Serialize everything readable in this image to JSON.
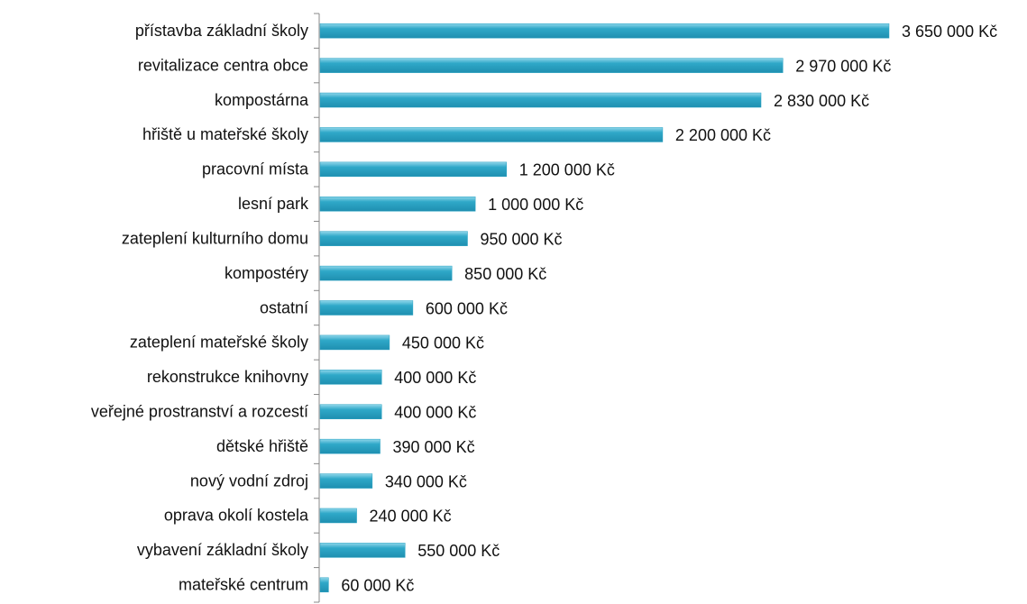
{
  "chart_data": {
    "type": "barh",
    "categories": [
      "přístavba základní školy",
      "revitalizace centra obce",
      "kompostárna",
      "hřiště u mateřské školy",
      "pracovní místa",
      "lesní park",
      "zateplení kulturního domu",
      "kompostéry",
      "ostatní",
      "zateplení mateřské školy",
      "rekonstrukce knihovny",
      "veřejné prostranství a rozcestí",
      "dětské hřiště",
      "nový vodní zdroj",
      "oprava okolí kostela",
      "vybavení základní školy",
      "mateřské centrum"
    ],
    "values": [
      3650000,
      2970000,
      2830000,
      2200000,
      1200000,
      1000000,
      950000,
      850000,
      600000,
      450000,
      400000,
      400000,
      390000,
      340000,
      240000,
      550000,
      60000
    ],
    "value_labels": [
      "3 650 000 Kč",
      "2 970 000 Kč",
      "2 830 000 Kč",
      "2 200 000 Kč",
      "1 200 000 Kč",
      "1 000 000 Kč",
      "950 000 Kč",
      "850 000 Kč",
      "600 000 Kč",
      "450 000 Kč",
      "400 000 Kč",
      "400 000 Kč",
      "390 000 Kč",
      "340 000 Kč",
      "240 000 Kč",
      "550 000 Kč",
      "60 000 Kč"
    ],
    "color": "#28a2c3"
  }
}
